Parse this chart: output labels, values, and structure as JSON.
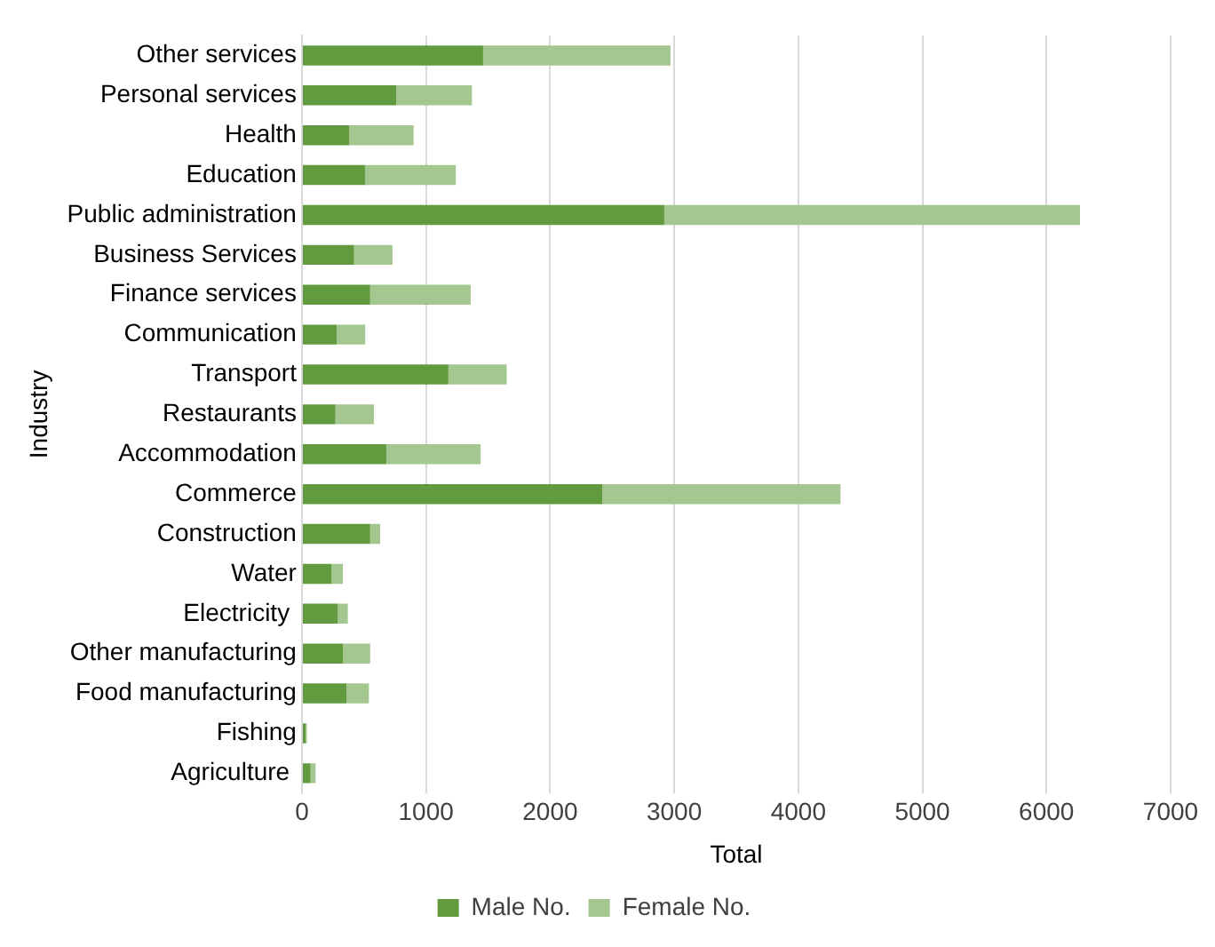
{
  "chart_data": {
    "type": "bar",
    "orientation": "horizontal",
    "stacked": true,
    "xlabel": "Total",
    "ylabel": "Industry",
    "categories": [
      "Other services",
      "Personal services",
      "Health",
      "Education",
      "Public administration",
      "Business Services",
      "Finance services",
      "Communication",
      "Transport",
      "Restaurants",
      "Accommodation",
      "Commerce",
      "Construction",
      "Water",
      "Electricity ",
      "Other manufacturing",
      "Food manufacturing",
      "Fishing",
      "Agriculture "
    ],
    "series": [
      {
        "name": "Male No.",
        "color": "#629b3f",
        "values": [
          1460,
          760,
          380,
          510,
          2920,
          420,
          550,
          280,
          1180,
          270,
          680,
          2420,
          550,
          240,
          290,
          330,
          360,
          30,
          70
        ]
      },
      {
        "name": "Female No.",
        "color": "#a4c68f",
        "values": [
          1510,
          610,
          520,
          730,
          3350,
          310,
          810,
          230,
          470,
          310,
          760,
          1920,
          80,
          90,
          80,
          220,
          180,
          10,
          40
        ]
      }
    ],
    "xlim": [
      0,
      7000
    ],
    "xticks": [
      0,
      1000,
      2000,
      3000,
      4000,
      5000,
      6000,
      7000
    ],
    "grid": "x",
    "legend": "bottom"
  }
}
